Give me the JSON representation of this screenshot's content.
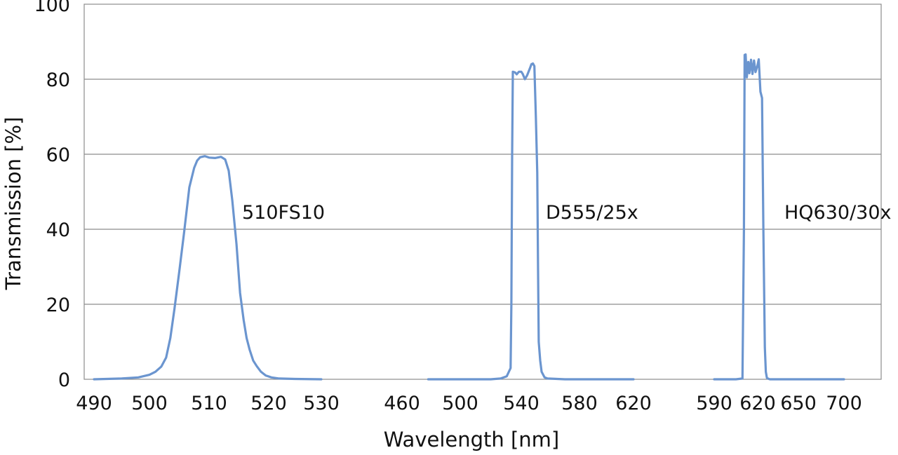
{
  "colors": {
    "series": "#6b95cf",
    "grid": "#8c8c8c",
    "text": "#111111"
  },
  "chart_data": {
    "type": "line",
    "title": "",
    "xlabel": "Wavelength [nm]",
    "ylabel": "Transmission [%]",
    "ylim": [
      0,
      100
    ],
    "y_ticks": [
      0,
      20,
      40,
      60,
      80,
      100
    ],
    "grid": "horizontal",
    "legend": "none",
    "panels": [
      {
        "x_ticks": [
          "490",
          "500",
          "510",
          "520",
          "530"
        ],
        "series": [
          {
            "name": "510FS10",
            "x": [
              490.0,
              495.0,
              498.0,
              500.0,
              501.0,
              502.0,
              502.8,
              503.5,
              504.2,
              505.0,
              505.8,
              506.7,
              507.5,
              508.0,
              508.5,
              509.3,
              510.0,
              511.0,
              512.0,
              512.7,
              513.3,
              513.9,
              514.6,
              515.2,
              515.8,
              516.3,
              516.8,
              517.4,
              518.0,
              518.7,
              519.5,
              520.5,
              522.0,
              525.0,
              530.0
            ],
            "y": [
              0,
              0.2,
              0.5,
              1.2,
              2.0,
              3.4,
              5.8,
              11.0,
              18.8,
              28.7,
              39.0,
              51.2,
              56.4,
              58.3,
              59.2,
              59.5,
              59.1,
              59.0,
              59.3,
              58.6,
              55.6,
              47.7,
              36.0,
              23.0,
              15.8,
              11.0,
              7.9,
              5.0,
              3.5,
              2.0,
              1.0,
              0.5,
              0.2,
              0.1,
              0
            ]
          }
        ]
      },
      {
        "x_ticks": [
          "460",
          "500",
          "540",
          "580",
          "620"
        ],
        "series": [
          {
            "name": "D555/25x",
            "x": [
              478.0,
              520.0,
              526.5,
              530.5,
              533.0,
              533.5,
              534.0,
              534.5,
              536.0,
              537.0,
              538.5,
              540.0,
              541.0,
              542.5,
              544.0,
              546.0,
              547.0,
              548.0,
              549.0,
              550.0,
              551.0,
              551.5,
              552.0,
              553.0,
              554.0,
              556.0,
              558.0,
              570.0,
              600.0,
              620.0
            ],
            "y": [
              0,
              0,
              0.2,
              0.8,
              3.0,
              20.0,
              60.0,
              82.0,
              81.8,
              81.3,
              82.0,
              82.0,
              81.4,
              80.0,
              81.0,
              83.0,
              84.0,
              84.2,
              83.5,
              70.0,
              55.0,
              30.0,
              10.0,
              5.0,
              2.0,
              0.5,
              0.2,
              0,
              0,
              0
            ]
          }
        ]
      },
      {
        "x_ticks": [
          "590",
          "620",
          "650",
          "700"
        ],
        "series": [
          {
            "name": "HQ630/30x",
            "x": [
              590.0,
              605.0,
              609.5,
              610.5,
              611.0,
              611.7,
              612.5,
              613.5,
              614.3,
              615.4,
              616.4,
              617.5,
              618.5,
              619.8,
              620.8,
              622.0,
              623.2,
              624.2,
              625.3,
              626.0,
              626.8,
              627.5,
              628.2,
              629.0,
              630.0,
              632.0,
              640.0,
              660.0,
              700.0
            ],
            "y": [
              0,
              0,
              0.2,
              40.0,
              86.5,
              86.6,
              80.5,
              84.6,
              81.6,
              85.2,
              81.4,
              85.0,
              81.9,
              83.6,
              85.3,
              76.7,
              75.0,
              40.0,
              8.5,
              2.0,
              0.4,
              0.2,
              0.1,
              0,
              0,
              0,
              0,
              0,
              0
            ]
          }
        ]
      }
    ]
  }
}
